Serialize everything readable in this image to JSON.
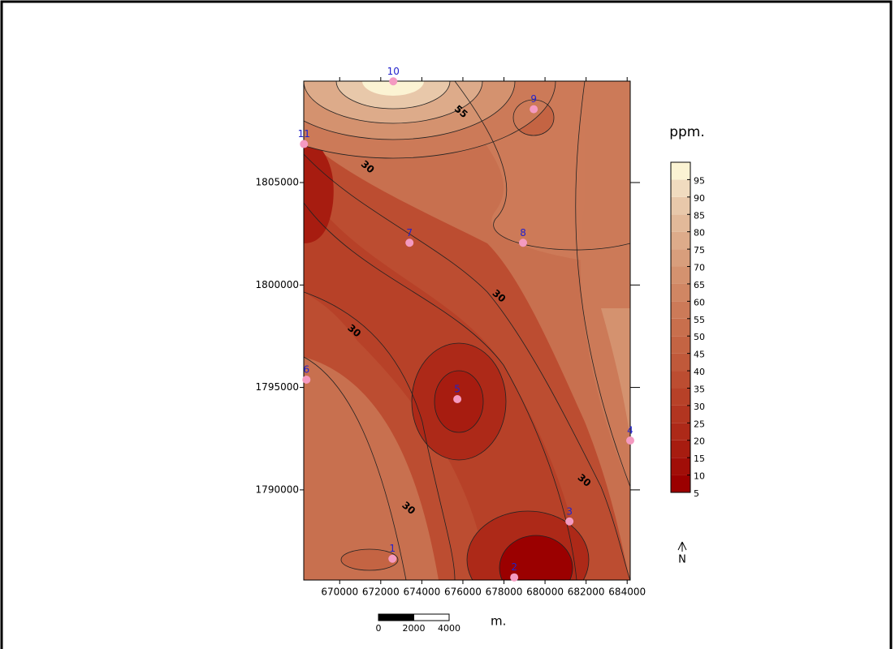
{
  "chart_data": {
    "type": "contour-map",
    "unit_label": "ppm.",
    "north_label": "N",
    "xlim": [
      668250,
      684150
    ],
    "ylim": [
      1785600,
      1809950
    ],
    "xticks": [
      670000,
      672000,
      674000,
      676000,
      678000,
      680000,
      682000,
      684000
    ],
    "yticks": [
      1790000,
      1795000,
      1800000,
      1805000
    ],
    "wells": {
      "labels": [
        "1",
        "2",
        "3",
        "4",
        "5",
        "6",
        "7",
        "8",
        "9",
        "10",
        "11"
      ],
      "x": [
        672570,
        678500,
        681190,
        684150,
        675730,
        668380,
        673400,
        678930,
        679450,
        672610,
        668260
      ],
      "y": [
        1786640,
        1785730,
        1788460,
        1792410,
        1794430,
        1795380,
        1802060,
        1802060,
        1808580,
        1809940,
        1806880
      ],
      "color": "#f49ac1",
      "label_color": "#2222cc"
    },
    "contour_labels": {
      "values": [
        55,
        30,
        30,
        30,
        30,
        30
      ],
      "x": [
        675900,
        671350,
        677750,
        670700,
        681900,
        673350
      ],
      "y": [
        1808450,
        1805750,
        1799450,
        1797750,
        1790450,
        1789100
      ]
    },
    "colorbar": {
      "lim": [
        5,
        100
      ],
      "ticks": [
        5,
        10,
        15,
        20,
        25,
        30,
        35,
        40,
        45,
        50,
        55,
        60,
        65,
        70,
        75,
        80,
        85,
        90,
        95
      ],
      "colors": [
        "#9b0000",
        "#a10e08",
        "#a71c10",
        "#ad2918",
        "#b23520",
        "#b74128",
        "#bc4d31",
        "#c0593a",
        "#c46443",
        "#c86f4d",
        "#cc7a58",
        "#d08663",
        "#d4926f",
        "#d89e7c",
        "#ddab8a",
        "#e2b999",
        "#e8c8aa",
        "#f0dbbf",
        "#fbf3d3"
      ]
    },
    "scale_bar": {
      "ticks": [
        0,
        2000,
        4000
      ],
      "unit": "m."
    }
  }
}
